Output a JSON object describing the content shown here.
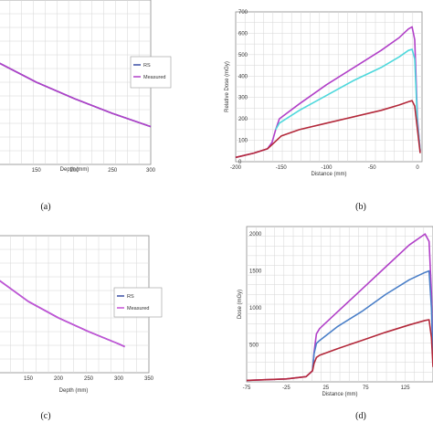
{
  "chart_data": [
    {
      "id": "a",
      "type": "line",
      "caption": "(a)",
      "xlabel": "Depth (mm)",
      "ylabel": "",
      "xlim": [
        100,
        300
      ],
      "x_ticks": [
        150,
        200,
        250,
        300
      ],
      "ylim": [
        0,
        1
      ],
      "grid": true,
      "legend_position": "right",
      "series": [
        {
          "name": "RS",
          "color": "#3a4fa6",
          "x": [
            100,
            150,
            200,
            250,
            300
          ],
          "y": [
            0.62,
            0.5,
            0.4,
            0.31,
            0.23
          ]
        },
        {
          "name": "Measured",
          "color": "#b140c8",
          "x": [
            100,
            150,
            200,
            250,
            300
          ],
          "y": [
            0.62,
            0.5,
            0.4,
            0.31,
            0.23
          ]
        }
      ]
    },
    {
      "id": "b",
      "type": "line",
      "caption": "(b)",
      "xlabel": "Distance (mm)",
      "ylabel": "Relative Dose (mGy)",
      "xlim": [
        -200,
        5
      ],
      "x_ticks": [
        -200,
        -150,
        -100,
        -50,
        0
      ],
      "ylim": [
        0,
        700
      ],
      "y_ticks": [
        0,
        100,
        200,
        300,
        400,
        500,
        600,
        700
      ],
      "grid": true,
      "series": [
        {
          "color": "#b140c8",
          "x": [
            -200,
            -180,
            -165,
            -160,
            -156,
            -152,
            -130,
            -100,
            -70,
            -40,
            -20,
            -10,
            -6,
            -3,
            0,
            3
          ],
          "y": [
            20,
            40,
            60,
            90,
            150,
            200,
            270,
            360,
            440,
            520,
            580,
            620,
            630,
            570,
            200,
            50
          ]
        },
        {
          "color": "#4fd8dc",
          "x": [
            -156,
            -152,
            -130,
            -100,
            -70,
            -40,
            -20,
            -10,
            -6,
            -3,
            0,
            3
          ],
          "y": [
            150,
            180,
            240,
            310,
            380,
            440,
            490,
            520,
            525,
            480,
            180,
            50
          ]
        },
        {
          "color": "#b3283a",
          "x": [
            -200,
            -180,
            -165,
            -160,
            -150,
            -130,
            -100,
            -70,
            -40,
            -20,
            -10,
            -6,
            -3,
            0,
            3
          ],
          "y": [
            20,
            40,
            60,
            80,
            120,
            150,
            180,
            210,
            240,
            265,
            280,
            285,
            260,
            150,
            40
          ]
        }
      ]
    },
    {
      "id": "c",
      "type": "line",
      "caption": "(c)",
      "xlabel": "Depth (mm)",
      "ylabel": "",
      "xlim": [
        100,
        350
      ],
      "x_ticks": [
        150,
        200,
        250,
        300,
        350
      ],
      "ylim": [
        0,
        1
      ],
      "grid": true,
      "legend_position": "right",
      "series": [
        {
          "name": "RS",
          "color": "#3a4fa6",
          "x": [
            100,
            150,
            200,
            250,
            300,
            310
          ],
          "y": [
            0.68,
            0.52,
            0.4,
            0.3,
            0.21,
            0.19
          ]
        },
        {
          "name": "Measured",
          "color": "#c552d6",
          "x": [
            100,
            150,
            200,
            250,
            300,
            310
          ],
          "y": [
            0.68,
            0.52,
            0.4,
            0.3,
            0.21,
            0.19
          ]
        }
      ]
    },
    {
      "id": "d",
      "type": "line",
      "caption": "(d)",
      "xlabel": "Distance (mm)",
      "ylabel": "Dose (mGy)",
      "xlim": [
        -75,
        160
      ],
      "x_ticks": [
        -75,
        -25,
        25,
        75,
        125
      ],
      "ylim": [
        0,
        2100
      ],
      "y_ticks": [
        500,
        1000,
        1500,
        2000
      ],
      "grid": true,
      "series": [
        {
          "color": "#b140c8",
          "x": [
            -75,
            -25,
            0,
            8,
            10,
            13,
            17,
            40,
            70,
            100,
            130,
            150,
            155,
            158,
            160
          ],
          "y": [
            20,
            40,
            70,
            150,
            400,
            650,
            720,
            950,
            1250,
            1550,
            1850,
            2000,
            1900,
            1200,
            300
          ]
        },
        {
          "color": "#4a7fc8",
          "x": [
            8,
            10,
            13,
            17,
            40,
            70,
            100,
            130,
            150,
            155,
            158,
            160
          ],
          "y": [
            150,
            380,
            520,
            560,
            750,
            950,
            1180,
            1380,
            1480,
            1500,
            1000,
            300
          ]
        },
        {
          "color": "#b3283a",
          "x": [
            -75,
            -25,
            0,
            8,
            10,
            13,
            17,
            40,
            70,
            100,
            130,
            150,
            155,
            158,
            160
          ],
          "y": [
            20,
            40,
            70,
            150,
            250,
            330,
            360,
            450,
            560,
            670,
            770,
            830,
            840,
            600,
            200
          ]
        }
      ]
    }
  ]
}
